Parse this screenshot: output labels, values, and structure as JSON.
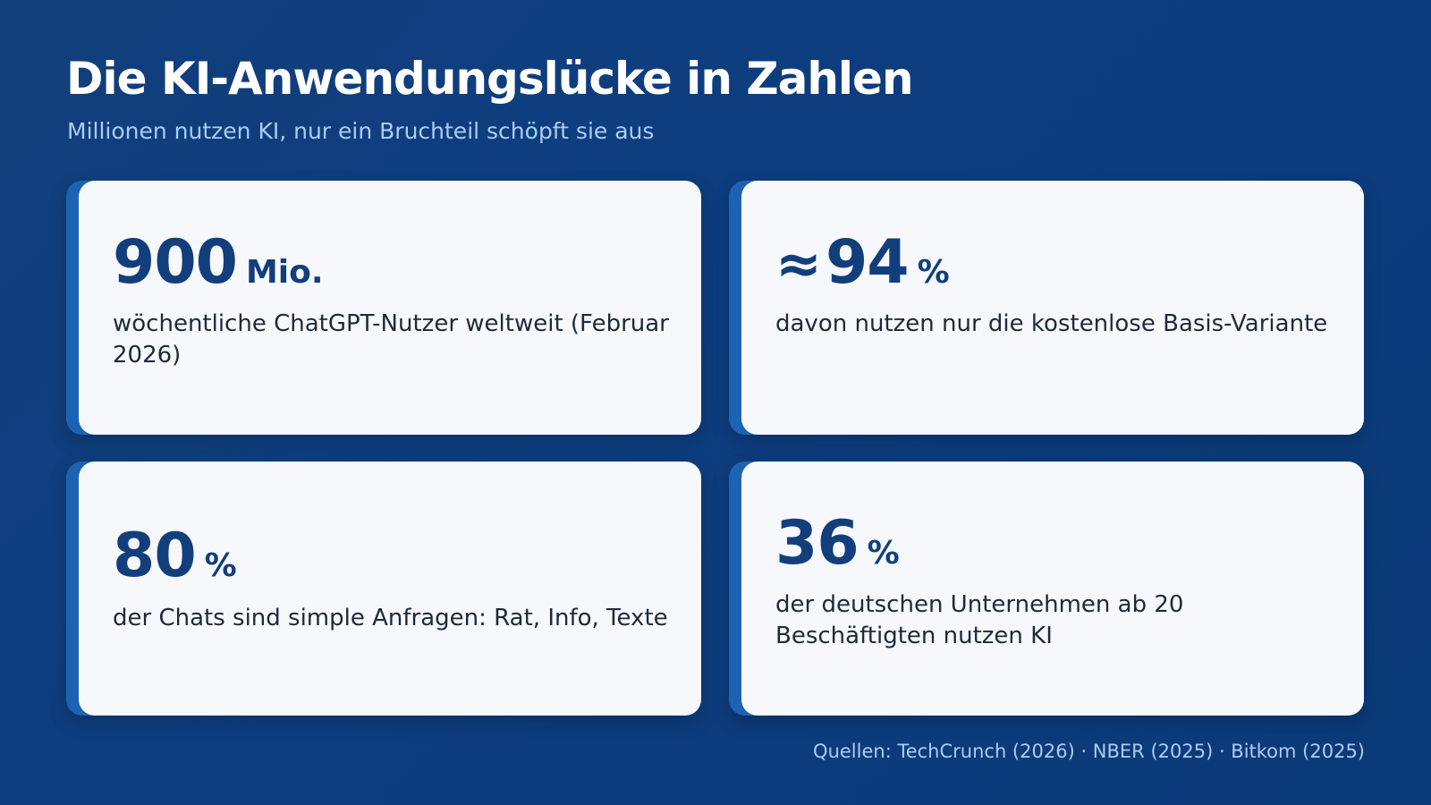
{
  "header": {
    "title": "Die KI-Anwendungslücke in Zahlen",
    "subtitle": "Millionen nutzen KI, nur ein Bruchteil schöpft sie aus"
  },
  "cards": [
    {
      "prefix": "",
      "number": "900",
      "unit": "Mio.",
      "description": "wöchentliche ChatGPT-Nutzer weltweit (Februar 2026)"
    },
    {
      "prefix": "≈",
      "number": "94",
      "unit": "%",
      "description": "davon nutzen nur die kostenlose Basis-Variante"
    },
    {
      "prefix": "",
      "number": "80",
      "unit": "%",
      "description": "der Chats sind simple Anfragen: Rat, Info, Texte"
    },
    {
      "prefix": "",
      "number": "36",
      "unit": "%",
      "description": "der deutschen Unternehmen ab 20 Beschäftigten nutzen KI"
    }
  ],
  "footer": {
    "sources": "Quellen: TechCrunch (2026) · NBER (2025) · Bitkom (2025)"
  },
  "colors": {
    "background": "#0d3d7f",
    "card": "#f6f8fb",
    "card_accent": "#1d63b3",
    "stat_text": "#123f7c",
    "subtitle_text": "#a9cdf5"
  }
}
